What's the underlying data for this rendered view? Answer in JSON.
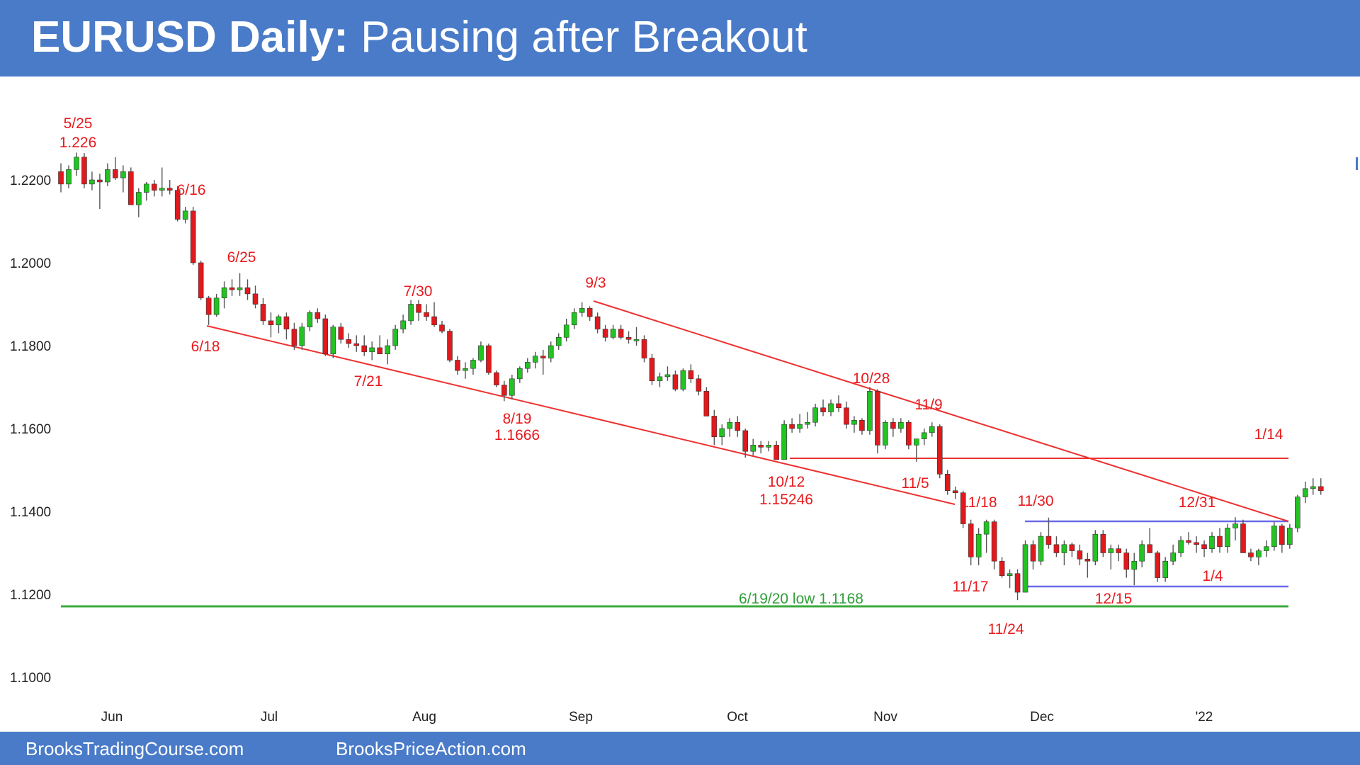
{
  "title": {
    "bold": "EURUSD Daily:",
    "rest": "Pausing after Breakout"
  },
  "footer": {
    "left": "BrooksTradingCourse.com",
    "right": "BrooksPriceAction.com"
  },
  "colors": {
    "banner": "#4a7bc8",
    "up_candle": "#22c322",
    "down_candle": "#e0191d",
    "wick": "#555555",
    "trendline": "#ee3030",
    "range_line": "#6a6ae8",
    "support_line": "#3caa3c",
    "annotation": "#e8191d"
  },
  "chart_data": {
    "type": "candlestick",
    "title": "EURUSD Daily: Pausing after Breakout",
    "xlabel": "",
    "ylabel": "",
    "ylim": [
      1.092,
      1.234
    ],
    "y_ticks": [
      "1.2200",
      "1.2000",
      "1.1800",
      "1.1600",
      "1.1400",
      "1.1200",
      "1.1000"
    ],
    "x_ticks": [
      "Jun",
      "Jul",
      "Aug",
      "Sep",
      "Oct",
      "Nov",
      "Dec",
      "'22"
    ],
    "grid": false,
    "key_points": [
      {
        "label": "5/25",
        "value": "1.226"
      },
      {
        "label": "6/16"
      },
      {
        "label": "6/18"
      },
      {
        "label": "6/25"
      },
      {
        "label": "7/21"
      },
      {
        "label": "7/30"
      },
      {
        "label": "8/19",
        "value": "1.1666"
      },
      {
        "label": "9/3"
      },
      {
        "label": "10/12",
        "value": "1.15246"
      },
      {
        "label": "10/28"
      },
      {
        "label": "11/5"
      },
      {
        "label": "11/9"
      },
      {
        "label": "11/17"
      },
      {
        "label": "11/18"
      },
      {
        "label": "11/24"
      },
      {
        "label": "11/30"
      },
      {
        "label": "12/15"
      },
      {
        "label": "12/31"
      },
      {
        "label": "1/4"
      },
      {
        "label": "1/14"
      }
    ],
    "reference_lines": [
      {
        "label": "6/19/20 low 1.1168",
        "value": 1.1168
      },
      {
        "label": "10/12 low",
        "value": 1.15246
      },
      {
        "label": "range top",
        "value": 1.138
      },
      {
        "label": "range bottom",
        "value": 1.122
      }
    ],
    "candles": [
      [
        1.222,
        1.224,
        1.217,
        1.219
      ],
      [
        1.219,
        1.2235,
        1.218,
        1.2225
      ],
      [
        1.2225,
        1.2266,
        1.221,
        1.2255
      ],
      [
        1.2255,
        1.2265,
        1.218,
        1.219
      ],
      [
        1.219,
        1.222,
        1.2175,
        1.22
      ],
      [
        1.22,
        1.2215,
        1.213,
        1.2195
      ],
      [
        1.2195,
        1.224,
        1.2185,
        1.2225
      ],
      [
        1.2225,
        1.2255,
        1.22,
        1.2205
      ],
      [
        1.2205,
        1.2235,
        1.217,
        1.222
      ],
      [
        1.222,
        1.223,
        1.214,
        1.214
      ],
      [
        1.214,
        1.218,
        1.211,
        1.217
      ],
      [
        1.217,
        1.2195,
        1.215,
        1.219
      ],
      [
        1.219,
        1.22,
        1.216,
        1.2175
      ],
      [
        1.2175,
        1.223,
        1.216,
        1.218
      ],
      [
        1.218,
        1.22,
        1.2165,
        1.2175
      ],
      [
        1.2175,
        1.2185,
        1.21,
        1.2105
      ],
      [
        1.2105,
        1.2135,
        1.2095,
        1.2125
      ],
      [
        1.2125,
        1.2135,
        1.1995,
        1.2
      ],
      [
        1.2,
        1.2005,
        1.191,
        1.1915
      ],
      [
        1.1915,
        1.192,
        1.185,
        1.1875
      ],
      [
        1.1875,
        1.1925,
        1.187,
        1.1915
      ],
      [
        1.1915,
        1.1955,
        1.189,
        1.194
      ],
      [
        1.194,
        1.196,
        1.192,
        1.1935
      ],
      [
        1.1935,
        1.1975,
        1.192,
        1.194
      ],
      [
        1.194,
        1.196,
        1.191,
        1.1925
      ],
      [
        1.1925,
        1.1945,
        1.189,
        1.19
      ],
      [
        1.19,
        1.1915,
        1.185,
        1.186
      ],
      [
        1.186,
        1.188,
        1.182,
        1.185
      ],
      [
        1.185,
        1.1875,
        1.183,
        1.187
      ],
      [
        1.187,
        1.188,
        1.1815,
        1.184
      ],
      [
        1.184,
        1.1855,
        1.179,
        1.18
      ],
      [
        1.18,
        1.1855,
        1.179,
        1.1845
      ],
      [
        1.1845,
        1.1885,
        1.1835,
        1.188
      ],
      [
        1.188,
        1.189,
        1.1855,
        1.1865
      ],
      [
        1.1865,
        1.1875,
        1.1775,
        1.178
      ],
      [
        1.178,
        1.185,
        1.177,
        1.1845
      ],
      [
        1.1845,
        1.1855,
        1.1805,
        1.1815
      ],
      [
        1.1815,
        1.183,
        1.1795,
        1.1805
      ],
      [
        1.1805,
        1.1825,
        1.1785,
        1.18
      ],
      [
        1.18,
        1.1825,
        1.1775,
        1.1785
      ],
      [
        1.1785,
        1.181,
        1.1765,
        1.1795
      ],
      [
        1.1795,
        1.1825,
        1.178,
        1.178
      ],
      [
        1.178,
        1.1815,
        1.1755,
        1.18
      ],
      [
        1.18,
        1.185,
        1.179,
        1.184
      ],
      [
        1.184,
        1.1875,
        1.183,
        1.186
      ],
      [
        1.186,
        1.191,
        1.185,
        1.19
      ],
      [
        1.19,
        1.191,
        1.186,
        1.188
      ],
      [
        1.188,
        1.19,
        1.186,
        1.187
      ],
      [
        1.187,
        1.1905,
        1.1845,
        1.185
      ],
      [
        1.185,
        1.186,
        1.183,
        1.1835
      ],
      [
        1.1835,
        1.184,
        1.176,
        1.1765
      ],
      [
        1.1765,
        1.1775,
        1.173,
        1.174
      ],
      [
        1.174,
        1.176,
        1.172,
        1.1745
      ],
      [
        1.1745,
        1.177,
        1.173,
        1.1765
      ],
      [
        1.1765,
        1.181,
        1.176,
        1.18
      ],
      [
        1.18,
        1.1805,
        1.173,
        1.1735
      ],
      [
        1.1735,
        1.174,
        1.17,
        1.1705
      ],
      [
        1.1705,
        1.1715,
        1.1666,
        1.168
      ],
      [
        1.168,
        1.173,
        1.167,
        1.172
      ],
      [
        1.172,
        1.175,
        1.171,
        1.1745
      ],
      [
        1.1745,
        1.177,
        1.1735,
        1.176
      ],
      [
        1.176,
        1.1785,
        1.1745,
        1.1775
      ],
      [
        1.1775,
        1.179,
        1.173,
        1.177
      ],
      [
        1.177,
        1.181,
        1.176,
        1.18
      ],
      [
        1.18,
        1.183,
        1.179,
        1.182
      ],
      [
        1.182,
        1.1865,
        1.181,
        1.185
      ],
      [
        1.185,
        1.189,
        1.184,
        1.188
      ],
      [
        1.188,
        1.1905,
        1.187,
        1.189
      ],
      [
        1.189,
        1.1895,
        1.186,
        1.187
      ],
      [
        1.187,
        1.188,
        1.183,
        1.184
      ],
      [
        1.184,
        1.185,
        1.181,
        1.182
      ],
      [
        1.182,
        1.185,
        1.1815,
        1.184
      ],
      [
        1.184,
        1.185,
        1.1815,
        1.182
      ],
      [
        1.182,
        1.1835,
        1.1805,
        1.1815
      ],
      [
        1.1815,
        1.1845,
        1.18,
        1.1815
      ],
      [
        1.1815,
        1.1825,
        1.176,
        1.177
      ],
      [
        1.177,
        1.178,
        1.1705,
        1.1715
      ],
      [
        1.1715,
        1.1735,
        1.17,
        1.1725
      ],
      [
        1.1725,
        1.175,
        1.1715,
        1.173
      ],
      [
        1.173,
        1.174,
        1.169,
        1.1695
      ],
      [
        1.1695,
        1.1745,
        1.169,
        1.174
      ],
      [
        1.174,
        1.1755,
        1.171,
        1.172
      ],
      [
        1.172,
        1.173,
        1.168,
        1.169
      ],
      [
        1.169,
        1.17,
        1.163,
        1.163
      ],
      [
        1.163,
        1.1645,
        1.156,
        1.158
      ],
      [
        1.158,
        1.161,
        1.156,
        1.16
      ],
      [
        1.16,
        1.1625,
        1.158,
        1.1615
      ],
      [
        1.1615,
        1.163,
        1.158,
        1.1595
      ],
      [
        1.1595,
        1.16,
        1.153,
        1.1545
      ],
      [
        1.1545,
        1.1575,
        1.1535,
        1.156
      ],
      [
        1.156,
        1.157,
        1.154,
        1.1555
      ],
      [
        1.1555,
        1.157,
        1.1545,
        1.156
      ],
      [
        1.156,
        1.157,
        1.153,
        1.1525
      ],
      [
        1.1525,
        1.162,
        1.1525,
        1.161
      ],
      [
        1.161,
        1.1625,
        1.159,
        1.16
      ],
      [
        1.16,
        1.1635,
        1.159,
        1.161
      ],
      [
        1.161,
        1.164,
        1.16,
        1.1615
      ],
      [
        1.1615,
        1.166,
        1.1605,
        1.165
      ],
      [
        1.165,
        1.167,
        1.163,
        1.164
      ],
      [
        1.164,
        1.167,
        1.163,
        1.166
      ],
      [
        1.166,
        1.168,
        1.164,
        1.165
      ],
      [
        1.165,
        1.1665,
        1.16,
        1.161
      ],
      [
        1.161,
        1.163,
        1.159,
        1.162
      ],
      [
        1.162,
        1.1625,
        1.1585,
        1.1595
      ],
      [
        1.1595,
        1.17,
        1.1585,
        1.169
      ],
      [
        1.169,
        1.1695,
        1.154,
        1.156
      ],
      [
        1.156,
        1.162,
        1.155,
        1.1615
      ],
      [
        1.1615,
        1.1625,
        1.158,
        1.16
      ],
      [
        1.16,
        1.1625,
        1.159,
        1.1615
      ],
      [
        1.1615,
        1.162,
        1.155,
        1.156
      ],
      [
        1.156,
        1.157,
        1.152,
        1.1575
      ],
      [
        1.1575,
        1.16,
        1.156,
        1.159
      ],
      [
        1.159,
        1.1615,
        1.158,
        1.1605
      ],
      [
        1.1605,
        1.161,
        1.148,
        1.149
      ],
      [
        1.149,
        1.15,
        1.144,
        1.145
      ],
      [
        1.145,
        1.146,
        1.143,
        1.1445
      ],
      [
        1.1445,
        1.145,
        1.136,
        1.137
      ],
      [
        1.137,
        1.138,
        1.127,
        1.129
      ],
      [
        1.129,
        1.136,
        1.127,
        1.1345
      ],
      [
        1.1345,
        1.138,
        1.13,
        1.1375
      ],
      [
        1.1375,
        1.138,
        1.126,
        1.128
      ],
      [
        1.128,
        1.129,
        1.124,
        1.1245
      ],
      [
        1.1245,
        1.126,
        1.1215,
        1.125
      ],
      [
        1.125,
        1.126,
        1.1186,
        1.1205
      ],
      [
        1.1205,
        1.133,
        1.1205,
        1.132
      ],
      [
        1.132,
        1.133,
        1.126,
        1.128
      ],
      [
        1.128,
        1.135,
        1.127,
        1.134
      ],
      [
        1.134,
        1.1385,
        1.131,
        1.132
      ],
      [
        1.132,
        1.134,
        1.129,
        1.13
      ],
      [
        1.13,
        1.133,
        1.127,
        1.132
      ],
      [
        1.132,
        1.1325,
        1.129,
        1.1305
      ],
      [
        1.1305,
        1.132,
        1.127,
        1.1285
      ],
      [
        1.1285,
        1.13,
        1.124,
        1.128
      ],
      [
        1.128,
        1.1355,
        1.127,
        1.1345
      ],
      [
        1.1345,
        1.1355,
        1.129,
        1.13
      ],
      [
        1.13,
        1.132,
        1.126,
        1.131
      ],
      [
        1.131,
        1.132,
        1.128,
        1.13
      ],
      [
        1.13,
        1.131,
        1.124,
        1.126
      ],
      [
        1.126,
        1.13,
        1.1222,
        1.128
      ],
      [
        1.128,
        1.133,
        1.1265,
        1.132
      ],
      [
        1.132,
        1.136,
        1.13,
        1.13
      ],
      [
        1.13,
        1.1305,
        1.123,
        1.124
      ],
      [
        1.124,
        1.129,
        1.123,
        1.128
      ],
      [
        1.128,
        1.132,
        1.127,
        1.13
      ],
      [
        1.13,
        1.134,
        1.129,
        1.133
      ],
      [
        1.133,
        1.135,
        1.132,
        1.1325
      ],
      [
        1.1325,
        1.134,
        1.13,
        1.132
      ],
      [
        1.132,
        1.133,
        1.129,
        1.131
      ],
      [
        1.131,
        1.135,
        1.13,
        1.134
      ],
      [
        1.134,
        1.136,
        1.13,
        1.1315
      ],
      [
        1.1315,
        1.137,
        1.13,
        1.136
      ],
      [
        1.136,
        1.1386,
        1.133,
        1.137
      ],
      [
        1.137,
        1.138,
        1.13,
        1.13
      ],
      [
        1.13,
        1.131,
        1.128,
        1.129
      ],
      [
        1.129,
        1.131,
        1.127,
        1.1305
      ],
      [
        1.1305,
        1.133,
        1.129,
        1.1315
      ],
      [
        1.1315,
        1.1375,
        1.1305,
        1.1365
      ],
      [
        1.1365,
        1.137,
        1.13,
        1.132
      ],
      [
        1.132,
        1.137,
        1.131,
        1.136
      ],
      [
        1.136,
        1.144,
        1.135,
        1.1435
      ],
      [
        1.1435,
        1.1472,
        1.142,
        1.1455
      ],
      [
        1.1455,
        1.148,
        1.144,
        1.146
      ],
      [
        1.146,
        1.148,
        1.144,
        1.145
      ]
    ]
  }
}
